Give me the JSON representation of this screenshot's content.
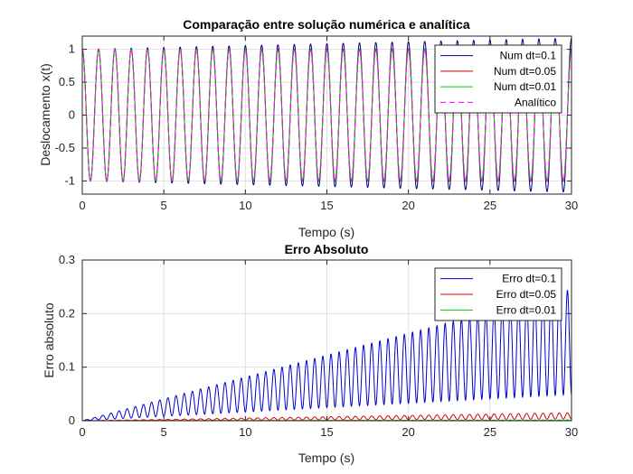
{
  "chart_data": [
    {
      "type": "line",
      "title": "Comparação entre solução numérica e analítica",
      "xlabel": "Tempo (s)",
      "ylabel": "Deslocamento x(t)",
      "xlim": [
        0,
        30
      ],
      "ylim": [
        -1.2,
        1.2
      ],
      "xticks": [
        "0",
        "5",
        "10",
        "15",
        "20",
        "25",
        "30"
      ],
      "yticks": [
        "-1",
        "-0.5",
        "0",
        "0.5",
        "1"
      ],
      "grid": true,
      "legend_position": "top-right",
      "frequency_hz": 1.0,
      "series": [
        {
          "name": "Num dt=0.1",
          "color": "#00007f",
          "dash": "solid",
          "amplitude_start": 1.0,
          "amplitude_end": 1.17
        },
        {
          "name": "Num dt=0.05",
          "color": "#dd0000",
          "dash": "solid",
          "amplitude_start": 1.0,
          "amplitude_end": 1.01
        },
        {
          "name": "Num dt=0.01",
          "color": "#00cc00",
          "dash": "solid",
          "amplitude_start": 1.0,
          "amplitude_end": 1.0
        },
        {
          "name": "Analítico",
          "color": "#ff00ff",
          "dash": "dashed",
          "amplitude_start": 1.0,
          "amplitude_end": 1.0
        }
      ]
    },
    {
      "type": "line",
      "title": "Erro Absoluto",
      "xlabel": "Tempo (s)",
      "ylabel": "Erro absoluto",
      "xlim": [
        0,
        30
      ],
      "ylim": [
        0,
        0.3
      ],
      "xticks": [
        "0",
        "5",
        "10",
        "15",
        "20",
        "25",
        "30"
      ],
      "yticks": [
        "0",
        "0.1",
        "0.2",
        "0.3"
      ],
      "grid": true,
      "legend_position": "top-right",
      "frequency_hz": 1.0,
      "series": [
        {
          "name": "Erro dt=0.1",
          "color": "#0000cc",
          "peak_start": 0.0,
          "peak_end": 0.245
        },
        {
          "name": "Erro dt=0.05",
          "color": "#dd0000",
          "peak_start": 0.0,
          "peak_end": 0.015
        },
        {
          "name": "Erro dt=0.01",
          "color": "#00cc00",
          "peak_start": 0.0,
          "peak_end": 0.0015
        }
      ]
    }
  ]
}
